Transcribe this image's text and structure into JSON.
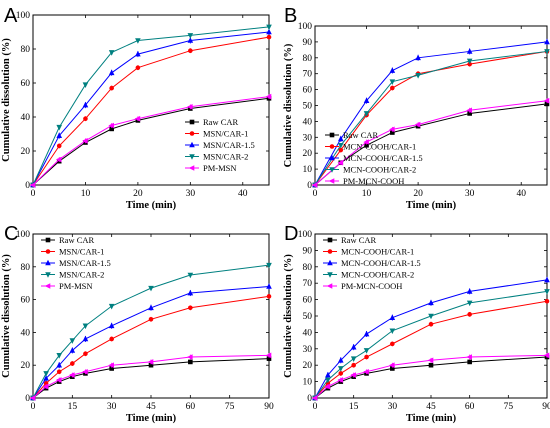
{
  "chart_data": [
    {
      "panel": "A",
      "type": "line",
      "xlabel": "Time (min)",
      "ylabel": "Cumulative dissolution (%)",
      "xlim": [
        0,
        45
      ],
      "ylim": [
        0,
        100
      ],
      "xticks": [
        0,
        10,
        20,
        30,
        40
      ],
      "yticks": [
        0,
        20,
        40,
        60,
        80,
        100
      ],
      "legend_position": "bottom-right",
      "x": [
        0,
        5,
        10,
        15,
        20,
        30,
        45
      ],
      "series": [
        {
          "name": "Raw CAR",
          "color": "#000000",
          "marker": "square",
          "values": [
            0,
            14,
            25,
            33,
            38,
            45,
            51
          ]
        },
        {
          "name": "MSN/CAR-1",
          "color": "#ff0000",
          "marker": "circle",
          "values": [
            0,
            23,
            39,
            57,
            69,
            79,
            87
          ]
        },
        {
          "name": "MSN/CAR-1.5",
          "color": "#0000ff",
          "marker": "triangle-up",
          "values": [
            0,
            29,
            47,
            66,
            77,
            85,
            90
          ]
        },
        {
          "name": "MSN/CAR-2",
          "color": "#008080",
          "marker": "triangle-down",
          "values": [
            0,
            34,
            59,
            78,
            85,
            88,
            93
          ]
        },
        {
          "name": "PM-MSN",
          "color": "#ff00ff",
          "marker": "triangle-left",
          "values": [
            0,
            15,
            26,
            35,
            39,
            46,
            52
          ]
        }
      ]
    },
    {
      "panel": "B",
      "type": "line",
      "xlabel": "Time (min)",
      "ylabel": "Cumulative dissolution (%)",
      "xlim": [
        0,
        45
      ],
      "ylim": [
        0,
        100
      ],
      "xticks": [
        0,
        10,
        20,
        30,
        40
      ],
      "yticks": [
        0,
        10,
        20,
        30,
        40,
        50,
        60,
        70,
        80,
        90,
        100
      ],
      "legend_position": "bottom-right",
      "x": [
        0,
        5,
        10,
        15,
        20,
        30,
        45
      ],
      "series": [
        {
          "name": "Raw CAR",
          "color": "#000000",
          "marker": "square",
          "values": [
            0,
            14,
            25,
            33,
            37,
            45,
            51
          ]
        },
        {
          "name": "MCN-COOH/CAR-1",
          "color": "#ff0000",
          "marker": "circle",
          "values": [
            0,
            22,
            44,
            61,
            70,
            76,
            84
          ]
        },
        {
          "name": "MCN-COOH/CAR-1.5",
          "color": "#0000ff",
          "marker": "triangle-up",
          "values": [
            0,
            29,
            53,
            72,
            80,
            84,
            90
          ]
        },
        {
          "name": "MCN-COOH/CAR-2",
          "color": "#008080",
          "marker": "triangle-down",
          "values": [
            0,
            25,
            45,
            65,
            69,
            78,
            84
          ]
        },
        {
          "name": "PM-MCN-COOH",
          "color": "#ff00ff",
          "marker": "triangle-left",
          "values": [
            0,
            14,
            27,
            35,
            38,
            47,
            53
          ]
        }
      ]
    },
    {
      "panel": "C",
      "type": "line",
      "xlabel": "Time (min)",
      "ylabel": "Cumulative dissolution (%)",
      "xlim": [
        0,
        90
      ],
      "ylim": [
        0,
        100
      ],
      "xticks": [
        0,
        15,
        30,
        45,
        60,
        75,
        90
      ],
      "yticks": [
        0,
        20,
        40,
        60,
        80,
        100
      ],
      "legend_position": "top-left",
      "x": [
        0,
        5,
        10,
        15,
        20,
        30,
        45,
        60,
        90
      ],
      "series": [
        {
          "name": "Raw CAR",
          "color": "#000000",
          "marker": "square",
          "values": [
            0,
            6,
            10,
            13,
            15,
            18,
            20,
            22,
            24
          ]
        },
        {
          "name": "MSN/CAR-1",
          "color": "#ff0000",
          "marker": "circle",
          "values": [
            0,
            9,
            16,
            21,
            27,
            36,
            48,
            55,
            62
          ]
        },
        {
          "name": "MSN/CAR-1.5",
          "color": "#0000ff",
          "marker": "triangle-up",
          "values": [
            0,
            12,
            20,
            29,
            36,
            44,
            55,
            64,
            68
          ]
        },
        {
          "name": "MSN/CAR-2",
          "color": "#008080",
          "marker": "triangle-down",
          "values": [
            0,
            15,
            26,
            35,
            44,
            56,
            67,
            75,
            81
          ]
        },
        {
          "name": "PM-MSN",
          "color": "#ff00ff",
          "marker": "triangle-left",
          "values": [
            0,
            7,
            11,
            14,
            16,
            20,
            22,
            25,
            26
          ]
        }
      ]
    },
    {
      "panel": "D",
      "type": "line",
      "xlabel": "Time (min)",
      "ylabel": "Cumulative dissolution (%)",
      "xlim": [
        0,
        90
      ],
      "ylim": [
        0,
        100
      ],
      "xticks": [
        0,
        15,
        30,
        45,
        60,
        75,
        90
      ],
      "yticks": [
        0,
        10,
        20,
        30,
        40,
        50,
        60,
        70,
        80,
        90,
        100
      ],
      "legend_position": "top-left",
      "x": [
        0,
        5,
        10,
        15,
        20,
        30,
        45,
        60,
        90
      ],
      "series": [
        {
          "name": "Raw CAR",
          "color": "#000000",
          "marker": "square",
          "values": [
            0,
            6,
            10,
            13,
            15,
            18,
            20,
            22,
            25
          ]
        },
        {
          "name": "MCN-COOH/CAR-1",
          "color": "#ff0000",
          "marker": "circle",
          "values": [
            0,
            9,
            15,
            20,
            25,
            33,
            45,
            51,
            59
          ]
        },
        {
          "name": "MCN-COOH/CAR-1.5",
          "color": "#0000ff",
          "marker": "triangle-up",
          "values": [
            0,
            14,
            23,
            31,
            39,
            49,
            58,
            65,
            72
          ]
        },
        {
          "name": "MCN-COOH/CAR-2",
          "color": "#008080",
          "marker": "triangle-down",
          "values": [
            0,
            11,
            18,
            24,
            29,
            41,
            50,
            58,
            65
          ]
        },
        {
          "name": "PM-MCN-COOH",
          "color": "#ff00ff",
          "marker": "triangle-left",
          "values": [
            0,
            7,
            11,
            14,
            16,
            20,
            23,
            25,
            26
          ]
        }
      ]
    }
  ]
}
